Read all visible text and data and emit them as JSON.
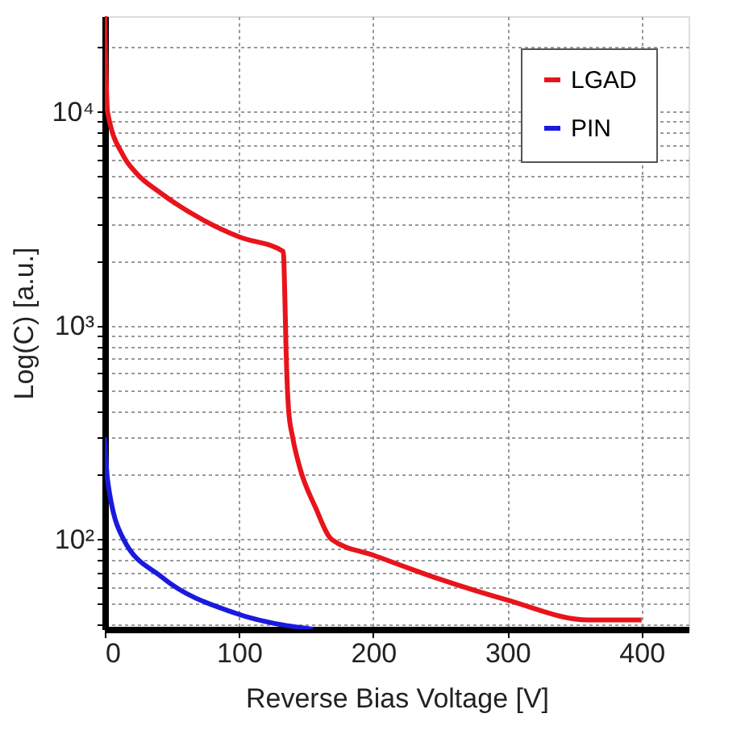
{
  "chart_data": {
    "type": "line",
    "xlabel": "Reverse Bias Voltage [V]",
    "ylabel": "Log(C) [a.u.]",
    "log": "y",
    "grid": true,
    "legend": "top right",
    "line_style": "solid",
    "marker": "none",
    "xlim": [
      0,
      435
    ],
    "xticks": [
      0,
      100,
      200,
      300,
      400
    ],
    "ylim": [
      38,
      28000
    ],
    "yticks": [
      {
        "value": 40,
        "label": null
      },
      {
        "value": 50,
        "label": null
      },
      {
        "value": 60,
        "label": null
      },
      {
        "value": 70,
        "label": null
      },
      {
        "value": 80,
        "label": null
      },
      {
        "value": 90,
        "label": null
      },
      {
        "value": 100,
        "label": "10²"
      },
      {
        "value": 200,
        "label": null
      },
      {
        "value": 300,
        "label": null
      },
      {
        "value": 400,
        "label": null
      },
      {
        "value": 500,
        "label": null
      },
      {
        "value": 600,
        "label": null
      },
      {
        "value": 700,
        "label": null
      },
      {
        "value": 800,
        "label": null
      },
      {
        "value": 900,
        "label": null
      },
      {
        "value": 1000,
        "label": "10³"
      },
      {
        "value": 2000,
        "label": null
      },
      {
        "value": 3000,
        "label": null
      },
      {
        "value": 4000,
        "label": null
      },
      {
        "value": 5000,
        "label": null
      },
      {
        "value": 6000,
        "label": null
      },
      {
        "value": 7000,
        "label": null
      },
      {
        "value": 8000,
        "label": null
      },
      {
        "value": 9000,
        "label": null
      },
      {
        "value": 10000,
        "label": "10⁴"
      },
      {
        "value": 20000,
        "label": null
      }
    ],
    "series": [
      {
        "name": "LGAD",
        "color": "#e8141b",
        "x": [
          0,
          2,
          14,
          23,
          42,
          74,
          100,
          133,
          134,
          135,
          137,
          140,
          145,
          157,
          169,
          201,
          250,
          300,
          360,
          400
        ],
        "values": [
          28000,
          10000,
          6200,
          5200,
          4150,
          3100,
          2600,
          2220,
          1500,
          800,
          400,
          300,
          220,
          141,
          100,
          84,
          65,
          52,
          42,
          42
        ]
      },
      {
        "name": "PIN",
        "color": "#1a1adf",
        "x": [
          0,
          2,
          14,
          42,
          98,
          155
        ],
        "values": [
          300,
          190,
          100,
          67,
          45,
          38
        ]
      }
    ]
  }
}
